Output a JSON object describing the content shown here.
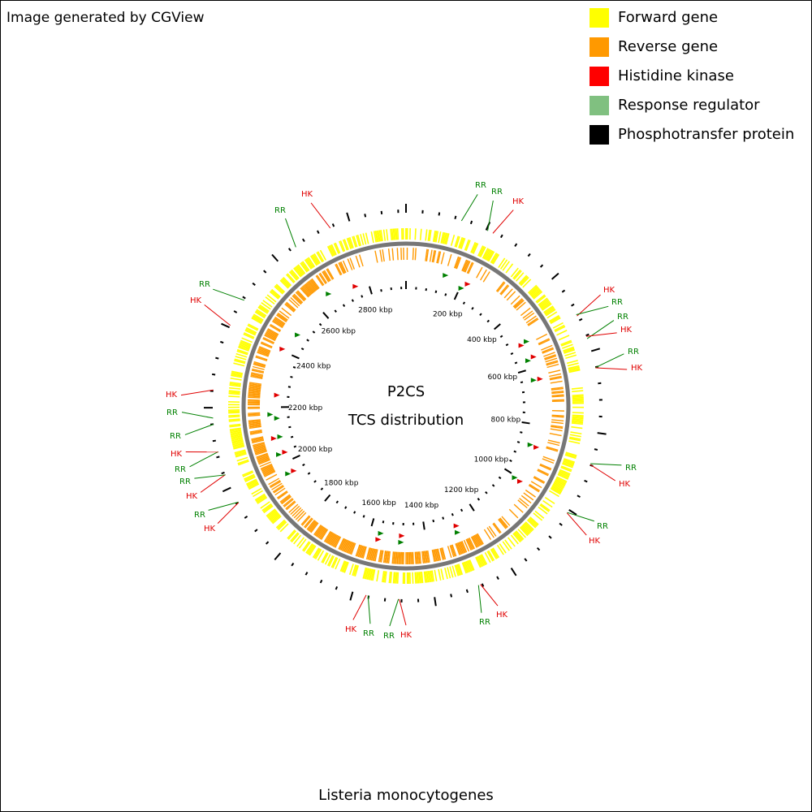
{
  "header": {
    "credit": "Image generated by CGView"
  },
  "legend": [
    {
      "label": "Forward gene",
      "color": "#ffff00"
    },
    {
      "label": "Reverse gene",
      "color": "#ff9900"
    },
    {
      "label": "Histidine kinase",
      "color": "#ff0000"
    },
    {
      "label": "Response regulator",
      "color": "#80c080"
    },
    {
      "label": "Phosphotransfer protein",
      "color": "#000000"
    }
  ],
  "map": {
    "title": "P2CS",
    "subtitle": "TCS distribution",
    "organism": "Listeria monocytogenes",
    "ticks": [
      "200 kbp",
      "400 kbp",
      "600 kbp",
      "800 kbp",
      "1000 kbp",
      "1200 kbp",
      "1400 kbp",
      "1600 kbp",
      "1800 kbp",
      "2000 kbp",
      "2200 kbp",
      "2400 kbp",
      "2600 kbp",
      "2800 kbp"
    ],
    "callouts": [
      {
        "label": "RR",
        "color": "#008000"
      },
      {
        "label": "RR",
        "color": "#008000"
      },
      {
        "label": "HK",
        "color": "#e00000"
      },
      {
        "label": "HK",
        "color": "#e00000"
      },
      {
        "label": "RR",
        "color": "#008000"
      },
      {
        "label": "RR",
        "color": "#008000"
      },
      {
        "label": "HK",
        "color": "#e00000"
      },
      {
        "label": "RR",
        "color": "#008000"
      },
      {
        "label": "HK",
        "color": "#e00000"
      },
      {
        "label": "RR",
        "color": "#008000"
      },
      {
        "label": "HK",
        "color": "#e00000"
      },
      {
        "label": "RR",
        "color": "#008000"
      },
      {
        "label": "HK",
        "color": "#e00000"
      },
      {
        "label": "HK",
        "color": "#e00000"
      },
      {
        "label": "RR",
        "color": "#008000"
      },
      {
        "label": "HK",
        "color": "#e00000"
      },
      {
        "label": "RR",
        "color": "#008000"
      },
      {
        "label": "RR",
        "color": "#008000"
      },
      {
        "label": "HK",
        "color": "#e00000"
      },
      {
        "label": "HK",
        "color": "#e00000"
      },
      {
        "label": "RR",
        "color": "#008000"
      },
      {
        "label": "HK",
        "color": "#e00000"
      },
      {
        "label": "RR",
        "color": "#008000"
      },
      {
        "label": "RR",
        "color": "#008000"
      },
      {
        "label": "HK",
        "color": "#e00000"
      },
      {
        "label": "RR",
        "color": "#008000"
      },
      {
        "label": "RR",
        "color": "#008000"
      },
      {
        "label": "HK",
        "color": "#e00000"
      },
      {
        "label": "HK",
        "color": "#e00000"
      },
      {
        "label": "RR",
        "color": "#008000"
      },
      {
        "label": "RR",
        "color": "#008000"
      },
      {
        "label": "HK",
        "color": "#e00000"
      }
    ]
  }
}
